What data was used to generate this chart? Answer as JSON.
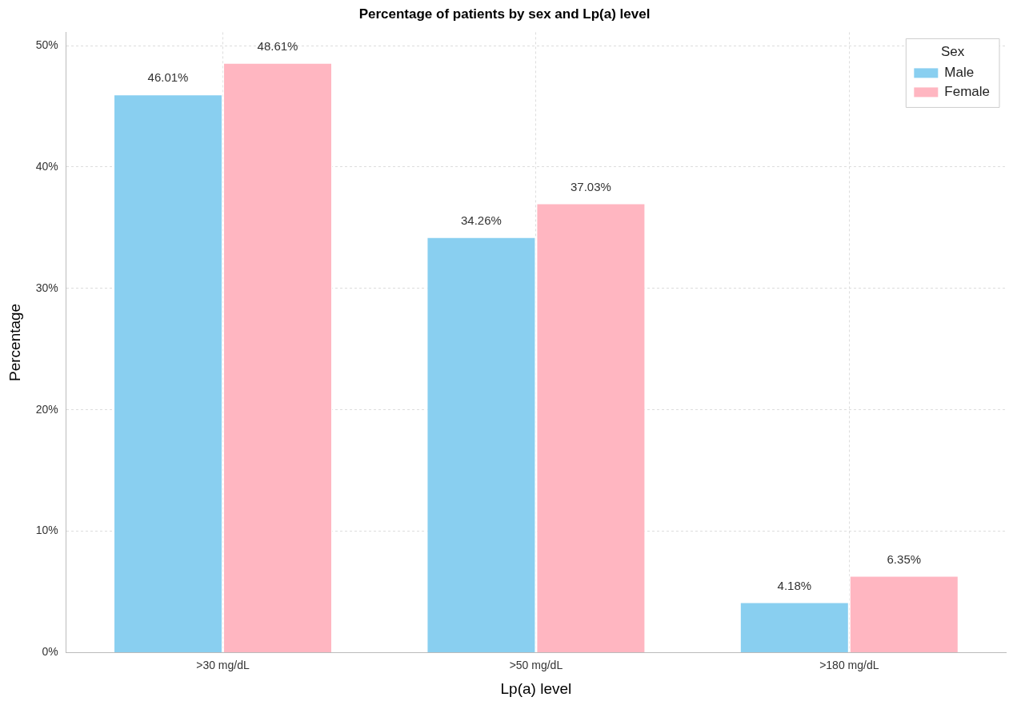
{
  "chart_data": {
    "type": "bar",
    "title": "Percentage of patients by sex and Lp(a) level",
    "xlabel": "Lp(a) level",
    "ylabel": "Percentage",
    "legend_title": "Sex",
    "categories": [
      ">30 mg/dL",
      ">50 mg/dL",
      ">180 mg/dL"
    ],
    "series": [
      {
        "name": "Male",
        "color": "#89cff0",
        "values": [
          46.01,
          34.26,
          4.18
        ],
        "value_labels": [
          "46.01%",
          "34.26%",
          "4.18%"
        ]
      },
      {
        "name": "Female",
        "color": "#ffb6c1",
        "values": [
          48.61,
          37.03,
          6.35
        ],
        "value_labels": [
          "48.61%",
          "37.03%",
          "6.35%"
        ]
      }
    ],
    "ylim": [
      0,
      51.1
    ],
    "yticks": [
      {
        "value": 0,
        "label": "0%"
      },
      {
        "value": 10,
        "label": "10%"
      },
      {
        "value": 20,
        "label": "20%"
      },
      {
        "value": 30,
        "label": "30%"
      },
      {
        "value": 40,
        "label": "40%"
      },
      {
        "value": 50,
        "label": "50%"
      }
    ],
    "grid": true,
    "legend": "top right"
  }
}
